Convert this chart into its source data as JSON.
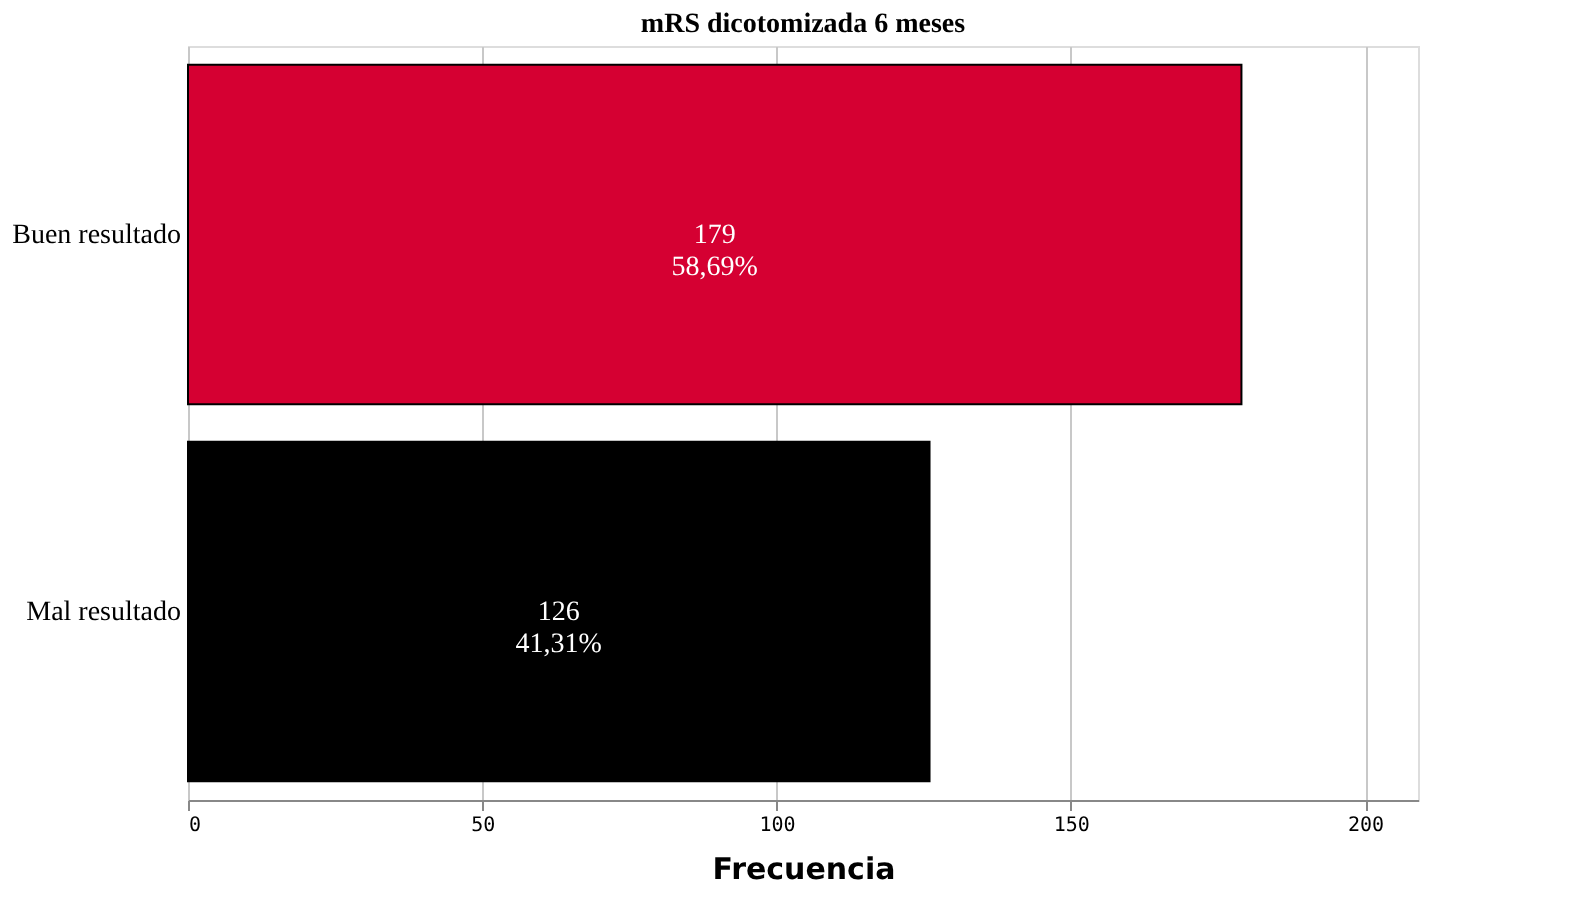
{
  "chart_data": {
    "type": "bar",
    "orientation": "horizontal",
    "title": "mRS dicotomizada 6 meses",
    "categories": [
      "Buen resultado",
      "Mal resultado"
    ],
    "values": [
      179,
      126
    ],
    "colors": [
      "#d50032",
      "#000000"
    ],
    "value_labels": [
      "179\n58,69%",
      "126\n41,31%"
    ],
    "xlabel": "Frecuencia",
    "xlim": [
      0,
      209
    ],
    "xticks": [
      0,
      50,
      100,
      150,
      200
    ],
    "grid": "x"
  }
}
